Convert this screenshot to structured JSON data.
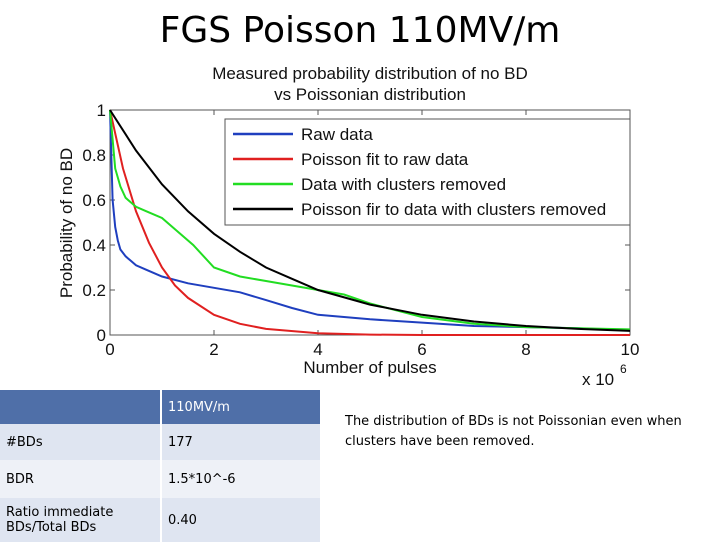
{
  "slide": {
    "title": "FGS Poisson 110MV/m",
    "note": "The distribution of BDs is not Poissonian even when clusters have been removed."
  },
  "table": {
    "header": [
      "",
      "110MV/m"
    ],
    "rows": [
      {
        "label": "#BDs",
        "value": "177"
      },
      {
        "label": "BDR",
        "value": "1.5*10^-6"
      },
      {
        "label": "Ratio immediate BDs/Total BDs",
        "value": "0.40"
      }
    ]
  },
  "chart_data": {
    "type": "line",
    "title": "Measured probability distribution of no BD vs Poissonian distribution",
    "title_lines": [
      "Measured probability distribution of no BD",
      "vs Poissonian distribution"
    ],
    "xlabel": "Number of pulses",
    "ylabel": "Probability of no BD",
    "x_multiplier_label": "x 10",
    "x_multiplier_exponent": "6",
    "xlim": [
      0,
      10
    ],
    "ylim": [
      0,
      1
    ],
    "xticks": [
      0,
      2,
      4,
      6,
      8,
      10
    ],
    "yticks": [
      0,
      0.2,
      0.4,
      0.6,
      0.8,
      1
    ],
    "grid": false,
    "legend_position": "top-right",
    "series": [
      {
        "name": "Raw data",
        "color": "#1f3fbf",
        "x": [
          0,
          0.05,
          0.1,
          0.15,
          0.2,
          0.3,
          0.4,
          0.5,
          0.7,
          1.0,
          1.5,
          2.0,
          2.5,
          3.0,
          3.5,
          4.0,
          5.0,
          6.0,
          7.0,
          8.0,
          9.0,
          10.0
        ],
        "y": [
          1.0,
          0.6,
          0.48,
          0.42,
          0.38,
          0.35,
          0.33,
          0.31,
          0.29,
          0.26,
          0.23,
          0.21,
          0.19,
          0.155,
          0.12,
          0.09,
          0.07,
          0.055,
          0.04,
          0.035,
          0.03,
          0.02
        ]
      },
      {
        "name": "Poisson fit to raw data",
        "color": "#e02020",
        "x": [
          0,
          0.25,
          0.5,
          0.75,
          1.0,
          1.25,
          1.5,
          2.0,
          2.5,
          3.0,
          4.0,
          5.0,
          6.0,
          8.0,
          10.0
        ],
        "y": [
          1.0,
          0.74,
          0.55,
          0.41,
          0.3,
          0.22,
          0.165,
          0.09,
          0.05,
          0.027,
          0.008,
          0.002,
          0.0,
          0.0,
          0.0
        ]
      },
      {
        "name": "Data with clusters removed",
        "color": "#22dd22",
        "x": [
          0,
          0.1,
          0.2,
          0.3,
          0.5,
          0.7,
          1.0,
          1.3,
          1.6,
          2.0,
          2.5,
          3.0,
          3.5,
          4.0,
          4.5,
          5.0,
          6.0,
          7.0,
          8.0,
          9.0,
          10.0
        ],
        "y": [
          1.0,
          0.74,
          0.66,
          0.61,
          0.57,
          0.55,
          0.52,
          0.46,
          0.4,
          0.3,
          0.26,
          0.24,
          0.22,
          0.2,
          0.18,
          0.14,
          0.08,
          0.05,
          0.035,
          0.03,
          0.025
        ]
      },
      {
        "name": "Poisson fir to data with clusters removed",
        "color": "#000000",
        "x": [
          0,
          0.5,
          1.0,
          1.5,
          2.0,
          2.5,
          3.0,
          3.5,
          4.0,
          5.0,
          6.0,
          7.0,
          8.0,
          9.0,
          10.0
        ],
        "y": [
          1.0,
          0.82,
          0.67,
          0.55,
          0.45,
          0.37,
          0.3,
          0.25,
          0.2,
          0.135,
          0.09,
          0.06,
          0.04,
          0.027,
          0.018
        ]
      }
    ]
  }
}
